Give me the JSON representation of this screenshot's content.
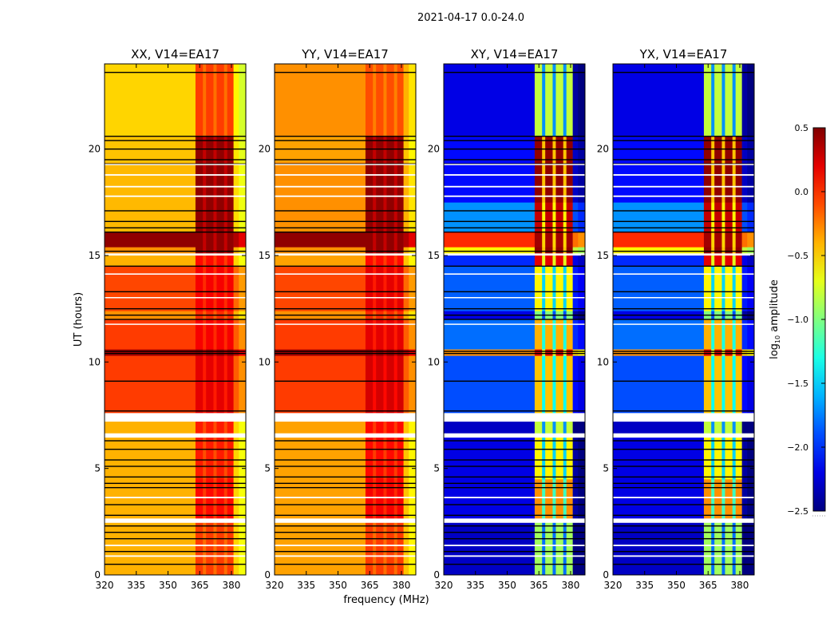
{
  "chart_data": {
    "type": "heatmap",
    "title": "2021-04-17 0.0-24.0",
    "xlabel": "frequency (MHz)",
    "ylabel": "UT (hours)",
    "xlim": [
      320,
      386.8
    ],
    "ylim": [
      0,
      24
    ],
    "xticks": [
      "320",
      "335",
      "350",
      "365",
      "380"
    ],
    "yticks": [
      "0",
      "5",
      "10",
      "15",
      "20"
    ],
    "colorbar": {
      "label_main": "log",
      "label_sub": "10",
      "label_rest": " amplitude",
      "range": [
        -2.5,
        0.5
      ],
      "colormap": "jet",
      "ticks": [
        "0.5",
        "0.0",
        "−0.5",
        "−1.0",
        "−1.5",
        "−2.0",
        "−2.5"
      ],
      "tick_values": [
        0.5,
        0.0,
        -0.5,
        -1.0,
        -1.5,
        -2.0,
        -2.5
      ]
    },
    "band_edges_mhz": {
      "high_band": [
        363,
        381
      ],
      "edge": [
        381,
        386.8
      ]
    },
    "flagged_hours_white": [
      [
        2.45,
        2.65
      ],
      [
        6.45,
        6.65
      ],
      [
        7.2,
        7.6
      ],
      [
        15.0,
        15.1
      ],
      [
        0.85,
        0.92
      ],
      [
        1.35,
        1.42
      ],
      [
        3.6,
        3.67
      ],
      [
        17.75,
        17.82
      ],
      [
        18.2,
        18.27
      ],
      [
        18.75,
        18.82
      ],
      [
        19.25,
        19.3
      ],
      [
        13.0,
        13.05
      ],
      [
        14.1,
        14.16
      ],
      [
        11.75,
        11.8
      ]
    ],
    "black_line_hours": [
      0.5,
      1.1,
      1.7,
      2.0,
      2.3,
      2.8,
      3.3,
      4.1,
      4.3,
      4.6,
      5.1,
      5.4,
      5.9,
      6.3,
      7.7,
      9.1,
      10.4,
      10.5,
      12.0,
      12.2,
      12.5,
      13.3,
      14.5,
      15.2,
      16.1,
      16.3,
      16.6,
      17.1,
      19.3,
      19.5,
      20.0,
      20.4,
      20.6,
      23.6
    ],
    "panels": [
      {
        "title": "XX, V14=EA17",
        "segments": [
          [
            0,
            2.45,
            -0.4,
            -0.05
          ],
          [
            2.65,
            4.5,
            -0.4,
            0.1
          ],
          [
            4.5,
            6.45,
            -0.4,
            0.05
          ],
          [
            6.65,
            7.2,
            -0.4,
            0.05
          ],
          [
            7.6,
            10.3,
            -0.05,
            0.2
          ],
          [
            10.3,
            10.6,
            0.4,
            0.45
          ],
          [
            10.6,
            12.0,
            -0.05,
            0.15
          ],
          [
            12.0,
            12.4,
            -0.3,
            0.0
          ],
          [
            12.4,
            14.5,
            -0.08,
            0.15
          ],
          [
            14.5,
            15.0,
            -0.4,
            0.1
          ],
          [
            15.1,
            15.4,
            -0.3,
            0.45
          ],
          [
            15.4,
            16.1,
            0.45,
            0.45
          ],
          [
            16.1,
            19.4,
            -0.42,
            0.45
          ],
          [
            19.4,
            20.6,
            -0.45,
            0.45
          ],
          [
            20.6,
            24,
            -0.5,
            -0.05
          ]
        ]
      },
      {
        "title": "YY, V14=EA17",
        "segments": [
          [
            0,
            2.45,
            -0.35,
            -0.05
          ],
          [
            2.65,
            4.5,
            -0.35,
            0.15
          ],
          [
            4.5,
            6.45,
            -0.35,
            0.1
          ],
          [
            6.65,
            7.2,
            -0.35,
            0.1
          ],
          [
            7.6,
            10.3,
            -0.05,
            0.25
          ],
          [
            10.3,
            10.6,
            0.4,
            0.45
          ],
          [
            10.6,
            12.0,
            -0.05,
            0.2
          ],
          [
            12.0,
            12.4,
            -0.3,
            0.0
          ],
          [
            12.4,
            14.5,
            -0.08,
            0.2
          ],
          [
            14.5,
            15.0,
            -0.35,
            0.1
          ],
          [
            15.1,
            15.4,
            -0.3,
            0.45
          ],
          [
            15.4,
            16.1,
            0.45,
            0.45
          ],
          [
            16.1,
            19.4,
            -0.3,
            0.45
          ],
          [
            19.4,
            20.6,
            -0.35,
            0.45
          ],
          [
            20.6,
            24,
            -0.3,
            -0.1
          ]
        ]
      },
      {
        "title": "XY, V14=EA17",
        "segments": [
          [
            0,
            2.45,
            -2.3,
            -0.9
          ],
          [
            2.65,
            4.5,
            -2.2,
            -0.3
          ],
          [
            4.5,
            6.45,
            -2.2,
            -0.6
          ],
          [
            6.65,
            7.2,
            -2.3,
            -0.8
          ],
          [
            7.6,
            10.3,
            -1.9,
            -0.45
          ],
          [
            10.3,
            10.6,
            -0.3,
            0.2
          ],
          [
            10.6,
            12.0,
            -1.8,
            -0.4
          ],
          [
            12.0,
            12.4,
            -2.2,
            -1.0
          ],
          [
            12.4,
            14.5,
            -1.85,
            -0.6
          ],
          [
            14.5,
            15.0,
            -2.0,
            0.2
          ],
          [
            15.1,
            15.4,
            -0.6,
            0.45
          ],
          [
            15.4,
            16.1,
            0.0,
            0.4
          ],
          [
            16.1,
            17.5,
            -1.7,
            0.3
          ],
          [
            17.5,
            20.6,
            -2.1,
            0.45
          ],
          [
            20.6,
            24,
            -2.2,
            -0.8
          ]
        ]
      },
      {
        "title": "YX, V14=EA17",
        "segments": [
          [
            0,
            2.45,
            -2.3,
            -0.9
          ],
          [
            2.65,
            4.5,
            -2.2,
            -0.3
          ],
          [
            4.5,
            6.45,
            -2.2,
            -0.6
          ],
          [
            6.65,
            7.2,
            -2.3,
            -0.8
          ],
          [
            7.6,
            10.3,
            -1.9,
            -0.45
          ],
          [
            10.3,
            10.6,
            -0.3,
            0.2
          ],
          [
            10.6,
            12.0,
            -1.8,
            -0.4
          ],
          [
            12.0,
            12.4,
            -2.2,
            -1.0
          ],
          [
            12.4,
            14.5,
            -1.85,
            -0.6
          ],
          [
            14.5,
            15.0,
            -2.0,
            0.2
          ],
          [
            15.1,
            15.4,
            -0.6,
            0.45
          ],
          [
            15.4,
            16.1,
            0.0,
            0.4
          ],
          [
            16.1,
            17.5,
            -1.7,
            0.3
          ],
          [
            17.5,
            20.6,
            -2.1,
            0.45
          ],
          [
            20.6,
            24,
            -2.2,
            -0.8
          ]
        ]
      }
    ]
  }
}
